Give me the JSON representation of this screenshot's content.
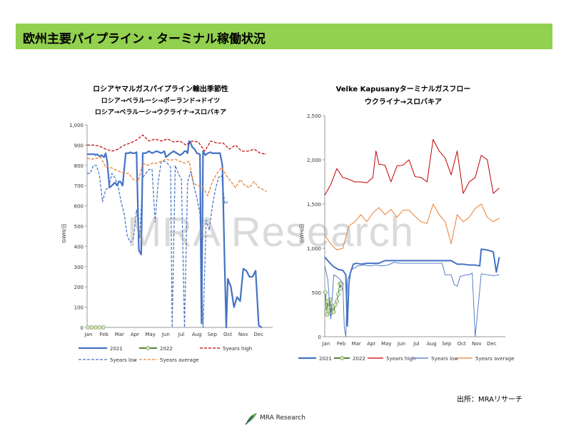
{
  "page": {
    "title": "欧州主要パイプライン・ターミナル稼働状況",
    "source": "出所：MRAリサーチ",
    "watermark": "MRA Research",
    "logo_text": "MRA Research",
    "colors": {
      "banner": "#92d050",
      "s2021": "#4472c4",
      "s2022": "#548235",
      "high": "#c00000",
      "low": "#4472c4",
      "avg": "#ed7d31"
    }
  },
  "chart_data": [
    {
      "type": "line",
      "title": [
        "ロシアヤマルガスパイプライン輸出季節性",
        "ロシア→ベラルーシ→ポーランド→ドイツ",
        "ロシア→ベラルーシ→ウクライナ→スロバキア"
      ],
      "ylabel": "GWH/日",
      "xlabel": "",
      "ylim": [
        0,
        1000
      ],
      "yticks": [
        "0",
        "100",
        "200",
        "300",
        "400",
        "500",
        "600",
        "700",
        "800",
        "900",
        "1,000"
      ],
      "months": [
        "Jan",
        "Feb",
        "Mar",
        "Apr",
        "May",
        "Jun",
        "Jul",
        "Aug",
        "Sep",
        "Oct",
        "Nov",
        "Dec"
      ],
      "grid": false,
      "legend_position": "bottom",
      "series": [
        {
          "name": "2021",
          "style": "solid",
          "width": 2.2,
          "color": "#4472c4",
          "x": [
            0,
            0.5,
            0.55,
            0.65,
            0.8,
            0.95,
            1.1,
            1.2,
            1.3,
            1.45,
            1.6,
            1.8,
            1.95,
            2.05,
            2.15,
            2.3,
            2.5,
            2.7,
            2.8,
            2.9,
            3.0,
            3.1,
            3.2,
            3.35,
            3.5,
            3.6,
            3.8,
            4.0,
            4.2,
            4.5,
            4.8,
            5.0,
            5.1,
            5.25,
            5.4,
            5.6,
            6.0,
            6.1,
            6.2,
            6.3,
            6.4,
            6.5,
            6.6,
            6.7,
            6.8,
            6.95,
            7.1,
            7.3,
            7.4,
            7.5,
            7.65,
            7.8,
            8.0,
            8.1,
            8.3,
            8.5,
            8.6,
            8.75,
            8.9,
            9.0,
            9.1,
            9.3,
            9.5,
            9.7,
            9.9,
            10.1,
            10.3,
            10.5,
            10.7,
            10.9,
            11.1,
            11.3
          ],
          "y": [
            855,
            855,
            850,
            855,
            845,
            850,
            840,
            860,
            820,
            690,
            700,
            715,
            700,
            720,
            720,
            700,
            860,
            860,
            865,
            860,
            860,
            860,
            865,
            380,
            360,
            860,
            860,
            870,
            860,
            870,
            860,
            870,
            840,
            850,
            860,
            870,
            850,
            855,
            860,
            870,
            870,
            860,
            920,
            910,
            890,
            880,
            860,
            855,
            20,
            870,
            850,
            860,
            865,
            860,
            860,
            860,
            860,
            800,
            300,
            0,
            240,
            200,
            100,
            150,
            130,
            290,
            280,
            250,
            250,
            280,
            10,
            0
          ]
        },
        {
          "name": "2022",
          "style": "markers",
          "width": 1.5,
          "color": "#548235",
          "x": [
            0.05,
            0.3,
            0.55,
            0.8,
            1.05
          ],
          "y": [
            0,
            0,
            0,
            0,
            0
          ]
        },
        {
          "name": "5years high",
          "style": "dash",
          "width": 1.2,
          "color": "#c00000",
          "x": [
            0,
            0.4,
            0.8,
            1.2,
            1.6,
            2.0,
            2.4,
            2.8,
            3.2,
            3.6,
            4.0,
            4.4,
            4.8,
            5.2,
            5.6,
            6.0,
            6.4,
            6.8,
            7.2,
            7.6,
            8.0,
            8.4,
            8.8,
            9.2,
            9.6,
            10.0,
            10.4,
            10.8,
            11.2,
            11.6
          ],
          "y": [
            900,
            900,
            895,
            880,
            870,
            880,
            900,
            910,
            925,
            950,
            920,
            930,
            920,
            930,
            915,
            920,
            900,
            920,
            915,
            870,
            920,
            910,
            910,
            880,
            900,
            870,
            870,
            880,
            860,
            855
          ]
        },
        {
          "name": "5years low",
          "style": "dash",
          "width": 1.2,
          "color": "#4472c4",
          "x": [
            0,
            0.2,
            0.4,
            0.6,
            0.8,
            1.0,
            1.2,
            1.4,
            1.6,
            1.8,
            2.0,
            2.2,
            2.4,
            2.6,
            2.8,
            3.0,
            3.2,
            3.4,
            3.6,
            3.8,
            4.0,
            4.2,
            4.4,
            4.6,
            4.8,
            5.0,
            5.2,
            5.4,
            5.5,
            5.7,
            5.9,
            6.1,
            6.3,
            6.5,
            6.7,
            6.9,
            7.1,
            7.3,
            7.5,
            7.7,
            7.9,
            8.1,
            8.3,
            8.5,
            8.7,
            8.9,
            9.1
          ],
          "y": [
            760,
            760,
            800,
            800,
            750,
            620,
            680,
            690,
            760,
            740,
            700,
            620,
            560,
            450,
            420,
            440,
            580,
            440,
            740,
            760,
            780,
            780,
            520,
            720,
            820,
            820,
            810,
            790,
            0,
            800,
            760,
            730,
            0,
            720,
            770,
            700,
            640,
            560,
            0,
            530,
            480,
            600,
            680,
            740,
            750,
            610,
            620
          ]
        },
        {
          "name": "5years average",
          "style": "dash",
          "width": 1.3,
          "color": "#ed7d31",
          "x": [
            0,
            0.3,
            0.6,
            0.9,
            1.2,
            1.5,
            1.8,
            2.1,
            2.4,
            2.7,
            3.0,
            3.3,
            3.6,
            3.9,
            4.2,
            4.5,
            4.8,
            5.1,
            5.4,
            5.7,
            6.0,
            6.3,
            6.6,
            6.9,
            7.2,
            7.5,
            7.8,
            8.1,
            8.4,
            8.7,
            9.0,
            9.3,
            9.6,
            9.9,
            10.2,
            10.5,
            10.8,
            11.1,
            11.4,
            11.6
          ],
          "y": [
            835,
            830,
            835,
            840,
            790,
            790,
            780,
            770,
            760,
            760,
            730,
            720,
            810,
            800,
            810,
            810,
            820,
            830,
            825,
            830,
            820,
            810,
            820,
            710,
            700,
            690,
            650,
            720,
            760,
            790,
            750,
            720,
            690,
            730,
            700,
            690,
            720,
            690,
            680,
            670
          ]
        }
      ]
    },
    {
      "type": "line",
      "title": [
        "Velke Kapusanyターミナルガスフロー",
        "ウクライナ→スロバキア"
      ],
      "ylabel": "GWH/日",
      "xlabel": "",
      "ylim": [
        0,
        2500
      ],
      "yticks": [
        "0",
        "500",
        "1,000",
        "1,500",
        "2,000",
        "2,500"
      ],
      "months": [
        "Jan",
        "Feb",
        "Mar",
        "Apr",
        "May",
        "Jun",
        "Jul",
        "Aug",
        "Sep",
        "Oct",
        "Nov",
        "Dec"
      ],
      "grid": false,
      "legend_position": "bottom",
      "series": [
        {
          "name": "2021",
          "style": "solid",
          "width": 2.0,
          "color": "#4472c4",
          "x": [
            0,
            0.3,
            0.6,
            0.9,
            1.2,
            1.4,
            1.5,
            1.6,
            1.7,
            1.9,
            2.1,
            2.4,
            2.8,
            3.2,
            3.6,
            4.0,
            4.4,
            4.8,
            5.2,
            5.6,
            6.0,
            6.4,
            6.8,
            7.2,
            7.6,
            8.0,
            8.4,
            8.8,
            9.2,
            9.6,
            10.0,
            10.3,
            10.4,
            10.8,
            11.2,
            11.4,
            11.6
          ],
          "y": [
            900,
            840,
            790,
            760,
            750,
            700,
            120,
            600,
            720,
            820,
            830,
            820,
            830,
            830,
            830,
            860,
            860,
            860,
            860,
            860,
            860,
            860,
            860,
            860,
            860,
            860,
            860,
            820,
            820,
            810,
            810,
            800,
            990,
            980,
            960,
            730,
            900
          ]
        },
        {
          "name": "2022",
          "style": "markers",
          "width": 1.3,
          "color": "#548235",
          "x": [
            0.05,
            0.1,
            0.15,
            0.2,
            0.25,
            0.3,
            0.35,
            0.4,
            0.5,
            0.6,
            0.7,
            0.8,
            0.9,
            1.0,
            1.05,
            1.1
          ],
          "y": [
            500,
            280,
            250,
            400,
            300,
            330,
            420,
            260,
            340,
            280,
            360,
            400,
            480,
            600,
            540,
            600
          ]
        },
        {
          "name": "5years high",
          "style": "solid",
          "width": 1.0,
          "color": "#c00000",
          "x": [
            0,
            0.4,
            0.8,
            1.2,
            1.6,
            2.0,
            2.4,
            2.8,
            3.2,
            3.4,
            3.6,
            4.0,
            4.4,
            4.8,
            5.2,
            5.6,
            6.0,
            6.4,
            6.8,
            7.2,
            7.6,
            8.0,
            8.4,
            8.8,
            9.2,
            9.6,
            10.0,
            10.4,
            10.8,
            11.2,
            11.6
          ],
          "y": [
            1600,
            1720,
            1900,
            1800,
            1780,
            1750,
            1750,
            1740,
            1800,
            2100,
            1950,
            1940,
            1750,
            1930,
            1940,
            2000,
            1810,
            1800,
            1750,
            2230,
            2100,
            2020,
            1830,
            2100,
            1620,
            1750,
            1800,
            2050,
            2000,
            1620,
            1680
          ]
        },
        {
          "name": "5years low",
          "style": "solid",
          "width": 0.9,
          "color": "#4472c4",
          "x": [
            0,
            0.2,
            0.4,
            0.6,
            0.8,
            1.0,
            1.2,
            1.3,
            1.4,
            1.5,
            1.8,
            2.2,
            2.6,
            3.0,
            3.4,
            3.8,
            4.2,
            4.6,
            5.0,
            5.4,
            5.8,
            6.2,
            6.6,
            7.0,
            7.4,
            7.8,
            8.0,
            8.2,
            8.4,
            8.6,
            8.8,
            9.0,
            9.4,
            9.6,
            9.8,
            10.0,
            10.4,
            10.8,
            11.2,
            11.6
          ],
          "y": [
            800,
            650,
            200,
            700,
            680,
            650,
            600,
            100,
            0,
            640,
            760,
            800,
            810,
            800,
            810,
            800,
            810,
            840,
            830,
            830,
            830,
            830,
            830,
            830,
            830,
            830,
            700,
            700,
            700,
            590,
            570,
            680,
            700,
            700,
            720,
            0,
            710,
            700,
            690,
            700
          ]
        },
        {
          "name": "5years average",
          "style": "solid",
          "width": 1.0,
          "color": "#ed7d31",
          "x": [
            0,
            0.4,
            0.8,
            1.2,
            1.6,
            2.0,
            2.4,
            2.8,
            3.2,
            3.6,
            4.0,
            4.4,
            4.8,
            5.2,
            5.6,
            6.0,
            6.4,
            6.8,
            7.2,
            7.6,
            8.0,
            8.4,
            8.8,
            9.2,
            9.6,
            10.0,
            10.4,
            10.8,
            11.2,
            11.6
          ],
          "y": [
            1150,
            1050,
            980,
            1000,
            1250,
            1300,
            1380,
            1300,
            1400,
            1460,
            1380,
            1440,
            1350,
            1430,
            1430,
            1360,
            1300,
            1280,
            1500,
            1380,
            1300,
            1050,
            1380,
            1300,
            1350,
            1450,
            1500,
            1350,
            1300,
            1340
          ]
        }
      ]
    }
  ]
}
